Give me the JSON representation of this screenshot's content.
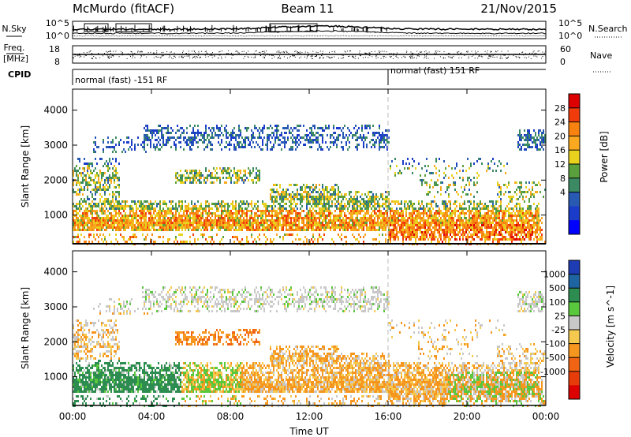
{
  "header": {
    "station": "McMurdo (fitACF)",
    "beam": "Beam 11",
    "date": "21/Nov/2015"
  },
  "chart_data": [
    {
      "type": "line",
      "panel": "noise",
      "left_label": "N.Sky",
      "right_label": "N.Search",
      "left_ticks": [
        "10^5",
        "10^0"
      ],
      "right_ticks": [
        "10^5",
        "10^0"
      ]
    },
    {
      "type": "scatter",
      "panel": "frequency",
      "left_label_line1": "Freq.",
      "left_label_line2": "[MHz]",
      "right_label": "Nave",
      "left_ticks": [
        "18",
        "8"
      ],
      "right_ticks": [
        "60",
        "0"
      ],
      "cpid_label": "CPID",
      "cpid_segments": [
        {
          "label": "normal (fast) -151 RF",
          "start_hour": 0
        },
        {
          "label": "normal (fast) 151 RF",
          "start_hour": 16
        }
      ]
    },
    {
      "type": "heatmap",
      "panel": "power",
      "ylabel": "Slant Range [km]",
      "yticks": [
        1000,
        2000,
        3000,
        4000
      ],
      "ylim": [
        180,
        4600
      ],
      "colorbar_label": "Power [dB]",
      "colorbar_ticks": [
        "28",
        "24",
        "20",
        "16",
        "12",
        "8",
        "4"
      ],
      "colorbar_colors": [
        "#dd0000",
        "#f03c0a",
        "#f7820f",
        "#f9a820",
        "#e8d21e",
        "#5aa03c",
        "#3c8a64",
        "#285ab4",
        "#1a3cc8",
        "#0000ff"
      ],
      "xlim": [
        0,
        24
      ]
    },
    {
      "type": "heatmap",
      "panel": "velocity",
      "ylabel": "Slant Range [km]",
      "yticks": [
        1000,
        2000,
        3000,
        4000
      ],
      "ylim": [
        180,
        4600
      ],
      "colorbar_label": "Velocity [m s^-1]",
      "colorbar_ticks": [
        "1000",
        "500",
        "100",
        "25",
        "-25",
        "-100",
        "-500",
        "-1000"
      ],
      "colorbar_colors": [
        "#1e3cb4",
        "#1e64a0",
        "#2d8c50",
        "#5ac83c",
        "#c8c8c8",
        "#f5c850",
        "#f7961e",
        "#f06414",
        "#e63c0a",
        "#dc0000"
      ],
      "xlabel": "Time UT",
      "xticks": [
        "00:00",
        "04:00",
        "08:00",
        "12:00",
        "16:00",
        "20:00",
        "00:00"
      ],
      "xlim": [
        0,
        24
      ]
    }
  ]
}
